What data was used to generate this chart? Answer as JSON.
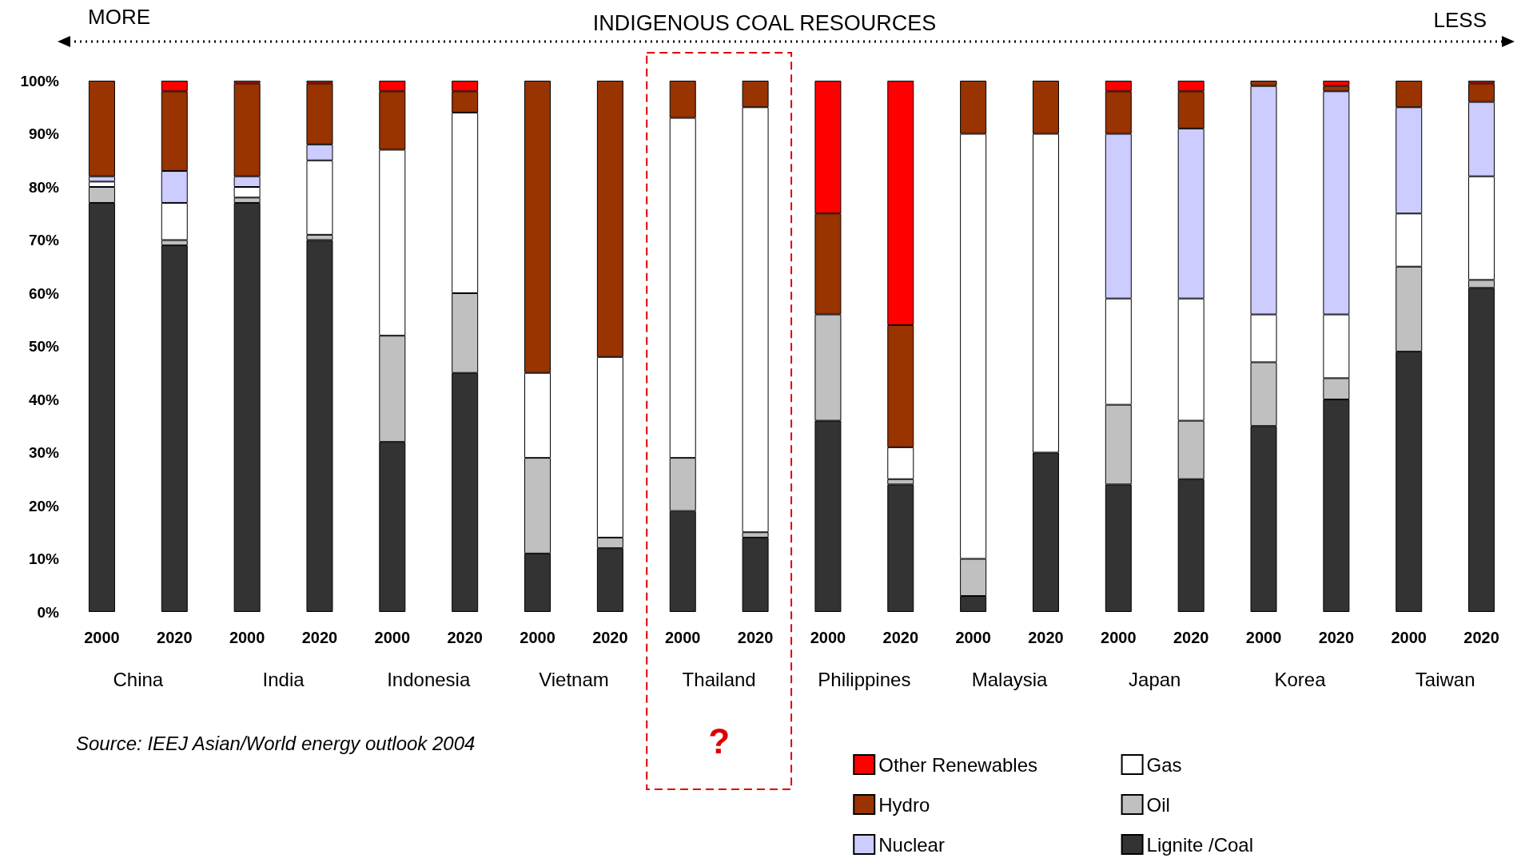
{
  "chart_data": {
    "type": "bar",
    "stacked": true,
    "title": "INDIGENOUS COAL RESOURCES",
    "categories": [
      "2000",
      "2020",
      "2000",
      "2020",
      "2000",
      "2020",
      "2000",
      "2020",
      "2000",
      "2020",
      "2000",
      "2020",
      "2000",
      "2020",
      "2000",
      "2020",
      "2000",
      "2020",
      "2000",
      "2020"
    ],
    "series": [
      {
        "name": "Lignite /Coal",
        "color": "#333333",
        "values": [
          77,
          69,
          77,
          70,
          32,
          45,
          11,
          12,
          19,
          14,
          36,
          24,
          3,
          30,
          24,
          25,
          35,
          40,
          49,
          61
        ]
      },
      {
        "name": "Oil",
        "color": "#c0c0c0",
        "values": [
          3,
          1,
          1,
          1,
          20,
          15,
          18,
          2,
          10,
          1,
          20,
          1,
          7,
          0,
          15,
          11,
          12,
          4,
          16,
          1.5
        ]
      },
      {
        "name": "Gas",
        "color": "#ffffff",
        "values": [
          1,
          7,
          2,
          14,
          35,
          34,
          16,
          34,
          64,
          80,
          0,
          6,
          80,
          60,
          20,
          23,
          9,
          12,
          10,
          19.5
        ]
      },
      {
        "name": "Nuclear",
        "color": "#ccccff",
        "values": [
          1,
          6,
          2,
          3,
          0,
          0,
          0,
          0,
          0,
          0,
          0,
          0,
          0,
          0,
          31,
          32,
          43,
          42,
          20,
          14
        ]
      },
      {
        "name": "Hydro",
        "color": "#993300",
        "values": [
          18,
          15,
          17.5,
          11.5,
          11,
          4,
          55,
          52,
          7,
          5,
          19,
          23,
          10,
          10,
          8,
          7,
          1,
          1,
          5,
          3.5
        ]
      },
      {
        "name": "Other Renewables",
        "color": "#ff0000",
        "values": [
          0,
          2,
          0.5,
          0.5,
          2,
          2,
          0,
          0,
          0,
          0,
          25,
          46,
          0,
          0,
          2,
          2,
          0,
          1,
          0,
          0.5
        ]
      }
    ],
    "ylim": [
      0,
      100
    ],
    "yticks": [
      {
        "value": 0,
        "label": "0%"
      },
      {
        "value": 10,
        "label": "10%"
      },
      {
        "value": 20,
        "label": "20%"
      },
      {
        "value": 30,
        "label": "30%"
      },
      {
        "value": 40,
        "label": "40%"
      },
      {
        "value": 50,
        "label": "50%"
      },
      {
        "value": 60,
        "label": "60%"
      },
      {
        "value": 70,
        "label": "70%"
      },
      {
        "value": 80,
        "label": "80%"
      },
      {
        "value": 90,
        "label": "90%"
      },
      {
        "value": 100,
        "label": "100%"
      }
    ],
    "grid": false,
    "legend": "bottom right",
    "annotations": [
      "China",
      "India",
      "Indonesia",
      "Vietnam",
      "Thailand",
      "Philippines",
      "Malaysia",
      "Japan",
      "Korea",
      "Taiwan",
      "MORE",
      "LESS",
      "Source: IEEJ Asian/World energy outlook 2004",
      "?"
    ]
  }
}
